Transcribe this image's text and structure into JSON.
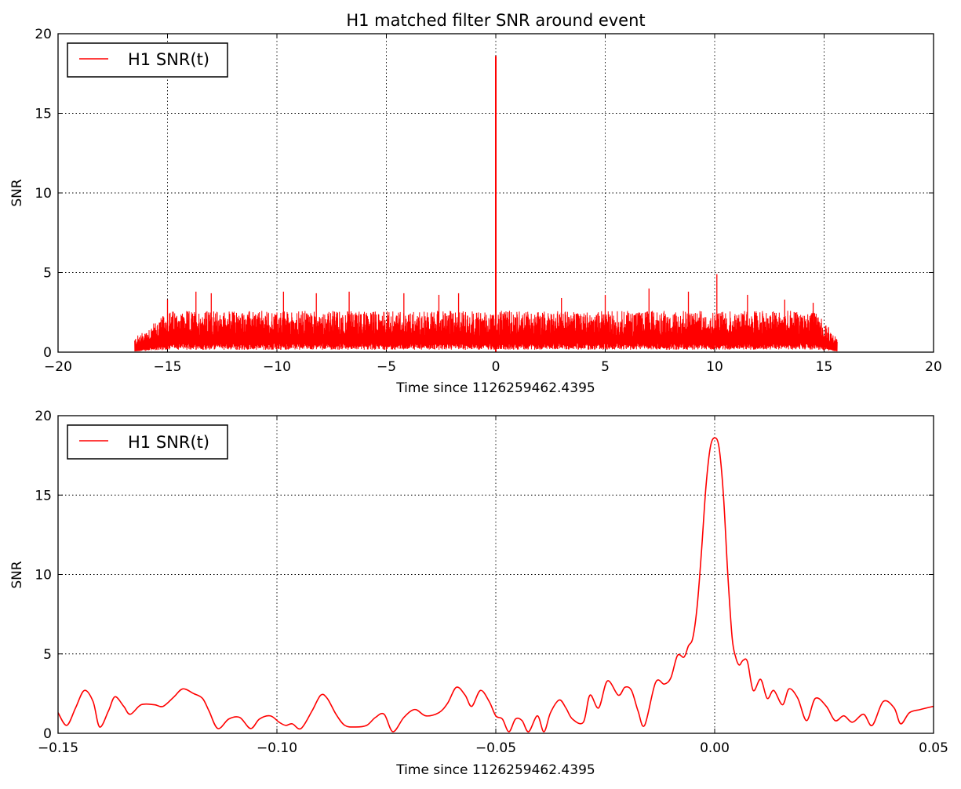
{
  "colors": {
    "series": "#ff0000",
    "grid": "#000000",
    "background": "#ffffff"
  },
  "chart_data": [
    {
      "type": "line",
      "title": "H1 matched filter SNR around event",
      "xlabel": "Time since 1126259462.4395",
      "ylabel": "SNR",
      "xlim": [
        -20,
        20
      ],
      "ylim": [
        0,
        20
      ],
      "xticks": [
        -20,
        -15,
        -10,
        -5,
        0,
        5,
        10,
        15,
        20
      ],
      "xtick_labels": [
        "−20",
        "−15",
        "−10",
        "−5",
        "0",
        "5",
        "10",
        "15",
        "20"
      ],
      "yticks": [
        0,
        5,
        10,
        15,
        20
      ],
      "ytick_labels": [
        "0",
        "5",
        "10",
        "15",
        "20"
      ],
      "grid": true,
      "legend": {
        "placement": "top-left",
        "entries": [
          "H1 SNR(t)"
        ]
      },
      "series": [
        {
          "name": "H1 SNR(t)",
          "color": "#ff0000",
          "note_range": [
            -16.5,
            15.6
          ],
          "noise_level": [
            1.0,
            2.6
          ],
          "noise_max_peaks": [
            [
              -15.0,
              3.3
            ],
            [
              -13.7,
              3.8
            ],
            [
              -13.0,
              3.7
            ],
            [
              -9.7,
              3.8
            ],
            [
              -8.2,
              3.7
            ],
            [
              -6.7,
              3.8
            ],
            [
              -4.2,
              3.7
            ],
            [
              -2.6,
              3.6
            ],
            [
              -1.7,
              3.7
            ],
            [
              3.0,
              3.4
            ],
            [
              5.0,
              3.6
            ],
            [
              7.0,
              4.0
            ],
            [
              8.8,
              3.8
            ],
            [
              10.1,
              4.9
            ],
            [
              11.5,
              3.6
            ],
            [
              13.2,
              3.3
            ],
            [
              14.5,
              3.1
            ]
          ],
          "peak": [
            0.0,
            18.6
          ]
        }
      ]
    },
    {
      "type": "line",
      "title": "",
      "xlabel": "Time since 1126259462.4395",
      "ylabel": "SNR",
      "xlim": [
        -0.15,
        0.05
      ],
      "ylim": [
        0,
        20
      ],
      "xticks": [
        -0.15,
        -0.1,
        -0.05,
        0.0,
        0.05
      ],
      "xtick_labels": [
        "−0.15",
        "−0.10",
        "−0.05",
        "0.00",
        "0.05"
      ],
      "yticks": [
        0,
        5,
        10,
        15,
        20
      ],
      "ytick_labels": [
        "0",
        "5",
        "10",
        "15",
        "20"
      ],
      "grid": true,
      "legend": {
        "placement": "top-left",
        "entries": [
          "H1 SNR(t)"
        ]
      },
      "series": [
        {
          "name": "H1 SNR(t)",
          "color": "#ff0000",
          "x": [
            -0.15,
            -0.148,
            -0.146,
            -0.144,
            -0.142,
            -0.1405,
            -0.1385,
            -0.137,
            -0.135,
            -0.1335,
            -0.131,
            -0.128,
            -0.126,
            -0.1235,
            -0.1215,
            -0.119,
            -0.117,
            -0.1155,
            -0.1135,
            -0.111,
            -0.1085,
            -0.106,
            -0.104,
            -0.1015,
            -0.0995,
            -0.098,
            -0.0965,
            -0.0945,
            -0.092,
            -0.09,
            -0.0885,
            -0.0865,
            -0.0845,
            -0.082,
            -0.0795,
            -0.0775,
            -0.0755,
            -0.0735,
            -0.071,
            -0.0685,
            -0.066,
            -0.063,
            -0.061,
            -0.059,
            -0.057,
            -0.0555,
            -0.0535,
            -0.0515,
            -0.05,
            -0.0485,
            -0.047,
            -0.0455,
            -0.044,
            -0.0425,
            -0.0405,
            -0.039,
            -0.0375,
            -0.0355,
            -0.034,
            -0.0325,
            -0.03,
            -0.0285,
            -0.0265,
            -0.0245,
            -0.022,
            -0.0205,
            -0.019,
            -0.0175,
            -0.016,
            -0.0135,
            -0.0115,
            -0.01,
            -0.0085,
            -0.007,
            -0.006,
            -0.005,
            -0.004,
            -0.003,
            -0.002,
            -0.001,
            0.0,
            0.001,
            0.002,
            0.003,
            0.004,
            0.0048,
            0.0056,
            0.0065,
            0.0075,
            0.0088,
            0.0105,
            0.012,
            0.0135,
            0.0155,
            0.017,
            0.019,
            0.021,
            0.023,
            0.0255,
            0.0275,
            0.0295,
            0.0315,
            0.034,
            0.036,
            0.0385,
            0.041,
            0.0425,
            0.0445,
            0.047,
            0.05
          ],
          "values": [
            1.3,
            0.5,
            1.6,
            2.7,
            2.0,
            0.4,
            1.4,
            2.3,
            1.7,
            1.2,
            1.8,
            1.8,
            1.7,
            2.3,
            2.8,
            2.5,
            2.2,
            1.4,
            0.3,
            0.9,
            1.0,
            0.3,
            0.9,
            1.1,
            0.7,
            0.5,
            0.6,
            0.3,
            1.4,
            2.4,
            2.2,
            1.2,
            0.5,
            0.4,
            0.5,
            1.0,
            1.2,
            0.1,
            1.0,
            1.5,
            1.1,
            1.3,
            1.9,
            2.9,
            2.4,
            1.7,
            2.7,
            2.0,
            1.1,
            0.9,
            0.1,
            0.9,
            0.8,
            0.1,
            1.1,
            0.1,
            1.3,
            2.1,
            1.6,
            0.9,
            0.7,
            2.4,
            1.6,
            3.3,
            2.4,
            2.9,
            2.7,
            1.4,
            0.5,
            3.2,
            3.1,
            3.5,
            4.9,
            4.8,
            5.5,
            6.0,
            8.0,
            11.5,
            15.5,
            18.0,
            18.6,
            18.0,
            15.0,
            10.0,
            6.0,
            4.8,
            4.3,
            4.6,
            4.5,
            2.7,
            3.4,
            2.2,
            2.7,
            1.8,
            2.8,
            2.2,
            0.8,
            2.2,
            1.7,
            0.8,
            1.1,
            0.7,
            1.2,
            0.5,
            2.0,
            1.6,
            0.6,
            1.3,
            1.5,
            1.7
          ]
        }
      ]
    }
  ]
}
